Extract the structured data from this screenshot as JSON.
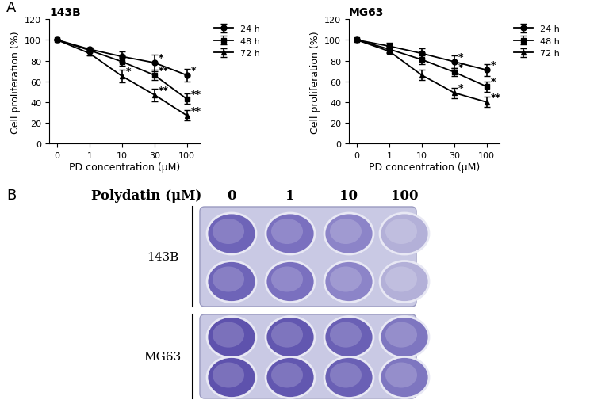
{
  "panel_labels": [
    "A",
    "B"
  ],
  "chart_data": [
    {
      "type": "line",
      "title": "143B",
      "x_label": "PD concentration (μM)",
      "y_label": "Cell proliferation (%)",
      "categories": [
        "0",
        "1",
        "10",
        "30",
        "100"
      ],
      "ylim": [
        0,
        120
      ],
      "yticks": [
        0,
        20,
        40,
        60,
        80,
        100,
        120
      ],
      "legend": "upper left",
      "series": [
        {
          "name": "24 h",
          "color": "#000000",
          "marker": "circle",
          "values": [
            100,
            91,
            84,
            78,
            66
          ],
          "errors": [
            0,
            2,
            5,
            8,
            6
          ],
          "annotations": [
            null,
            null,
            null,
            "*",
            "*"
          ]
        },
        {
          "name": "48 h",
          "color": "#000000",
          "marker": "square",
          "values": [
            100,
            90,
            79,
            66,
            43
          ],
          "errors": [
            0,
            2,
            4,
            5,
            5
          ],
          "annotations": [
            null,
            null,
            null,
            "**",
            "**"
          ]
        },
        {
          "name": "72 h",
          "color": "#000000",
          "marker": "triangle",
          "values": [
            100,
            87,
            65,
            47,
            27
          ],
          "errors": [
            0,
            2,
            6,
            6,
            5
          ],
          "annotations": [
            null,
            null,
            "*",
            "**",
            "**"
          ]
        }
      ]
    },
    {
      "type": "line",
      "title": "MG63",
      "x_label": "PD concentration (μM)",
      "y_label": "Cell proliferation (%)",
      "categories": [
        "0",
        "1",
        "10",
        "30",
        "100"
      ],
      "ylim": [
        0,
        120
      ],
      "yticks": [
        0,
        20,
        40,
        60,
        80,
        100,
        120
      ],
      "legend": "upper left",
      "series": [
        {
          "name": "24 h",
          "color": "#000000",
          "marker": "circle",
          "values": [
            100,
            94,
            87,
            79,
            71
          ],
          "errors": [
            0,
            3,
            5,
            6,
            6
          ],
          "annotations": [
            null,
            null,
            null,
            "*",
            "*"
          ]
        },
        {
          "name": "48 h",
          "color": "#000000",
          "marker": "square",
          "values": [
            100,
            91,
            81,
            69,
            55
          ],
          "errors": [
            0,
            3,
            4,
            4,
            5
          ],
          "annotations": [
            null,
            null,
            null,
            "*",
            "*"
          ]
        },
        {
          "name": "72 h",
          "color": "#000000",
          "marker": "triangle",
          "values": [
            100,
            89,
            66,
            49,
            40
          ],
          "errors": [
            0,
            2,
            5,
            5,
            5
          ],
          "annotations": [
            null,
            null,
            null,
            "*",
            "**"
          ]
        }
      ]
    }
  ],
  "plate": {
    "title": "Polydatin (μM)",
    "columns": [
      "0",
      "1",
      "10",
      "100"
    ],
    "rows": [
      "143B",
      "MG63"
    ]
  }
}
